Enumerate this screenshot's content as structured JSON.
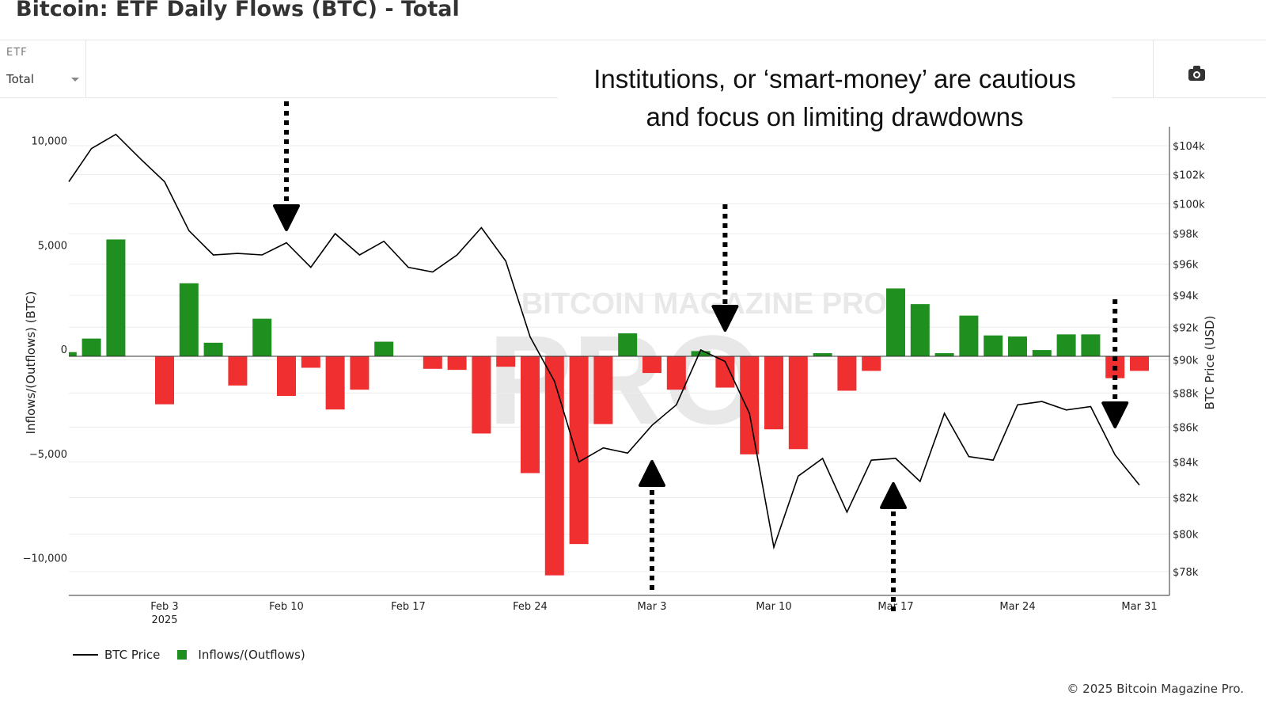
{
  "header": {
    "title": "Bitcoin: ETF Daily Flows (BTC) - Total"
  },
  "toolbar": {
    "etf_label": "ETF",
    "etf_value": "Total",
    "camera_icon": "camera-icon"
  },
  "annotation": {
    "line1": "Institutions, or ‘smart-money’ are cautious",
    "line2": "and focus on limiting drawdowns"
  },
  "watermark": "BITCOIN MAGAZINE PRO",
  "legend": {
    "price": "BTC Price",
    "flows": "Inflows/(Outflows)"
  },
  "copyright": "© 2025 Bitcoin Magazine Pro.",
  "colors": {
    "inflow": "#1f8f1f",
    "outflow": "#f03030",
    "price": "#000000"
  },
  "chart_data": {
    "type": "bar+line",
    "title": "Bitcoin: ETF Daily Flows (BTC) - Total",
    "ylabel": "Inflows/(Outflows) (BTC)",
    "y2label": "BTC Price (USD)",
    "ylim": [
      -11400,
      10500
    ],
    "y_ticks": [
      10000,
      5000,
      0,
      -5000,
      -10000
    ],
    "y_tick_labels": [
      "10,000",
      "5,000",
      "0",
      "−5,000",
      "−10,000"
    ],
    "y2_scale": "log",
    "y2_ticks": [
      104000,
      102000,
      100000,
      98000,
      96000,
      94000,
      92000,
      90000,
      88000,
      86000,
      84000,
      82000,
      80000,
      78000
    ],
    "y2_tick_labels": [
      "$104k",
      "$102k",
      "$100k",
      "$98k",
      "$96k",
      "$94k",
      "$92k",
      "$90k",
      "$88k",
      "$86k",
      "$84k",
      "$82k",
      "$80k",
      "$78k"
    ],
    "x_tick_labels": [
      {
        "date": "Feb 3",
        "sub": "2025"
      },
      {
        "date": "Feb 10"
      },
      {
        "date": "Feb 17"
      },
      {
        "date": "Feb 24"
      },
      {
        "date": "Mar 3"
      },
      {
        "date": "Mar 10"
      },
      {
        "date": "Mar 17"
      },
      {
        "date": "Mar 24"
      },
      {
        "date": "Mar 31"
      }
    ],
    "categories": [
      "Jan 28",
      "Jan 29",
      "Jan 30",
      "Jan 31",
      "Feb 3",
      "Feb 4",
      "Feb 5",
      "Feb 6",
      "Feb 7",
      "Feb 10",
      "Feb 11",
      "Feb 12",
      "Feb 13",
      "Feb 14",
      "Feb 17",
      "Feb 18",
      "Feb 19",
      "Feb 20",
      "Feb 21",
      "Feb 24",
      "Feb 25",
      "Feb 26",
      "Feb 27",
      "Feb 28",
      "Mar 3",
      "Mar 4",
      "Mar 5",
      "Mar 6",
      "Mar 7",
      "Mar 10",
      "Mar 11",
      "Mar 12",
      "Mar 13",
      "Mar 14",
      "Mar 17",
      "Mar 18",
      "Mar 19",
      "Mar 20",
      "Mar 21",
      "Mar 24",
      "Mar 25",
      "Mar 26",
      "Mar 27",
      "Mar 28",
      "Mar 31"
    ],
    "series": [
      {
        "name": "Inflows/(Outflows)",
        "type": "bar",
        "values": [
          200,
          850,
          5600,
          0,
          -2300,
          3500,
          650,
          -1400,
          1800,
          -1900,
          -550,
          -2550,
          -1600,
          700,
          0,
          -600,
          -650,
          -3700,
          -500,
          -5600,
          -10500,
          -9000,
          -3250,
          1100,
          -800,
          -1600,
          250,
          -1500,
          -4700,
          -3500,
          -4450,
          150,
          -1650,
          -700,
          3250,
          2500,
          150,
          1950,
          1000,
          950,
          300,
          1050,
          1050,
          -1050,
          -700
        ]
      },
      {
        "name": "BTC Price",
        "type": "line",
        "values": [
          101500,
          103800,
          104800,
          103100,
          101500,
          98200,
          96600,
          96700,
          96600,
          97400,
          95800,
          98000,
          96600,
          97500,
          95800,
          95500,
          96600,
          98400,
          96200,
          91400,
          88700,
          84000,
          84800,
          84500,
          86100,
          87300,
          90600,
          89900,
          86800,
          79300,
          83200,
          84200,
          81200,
          84100,
          84200,
          82900,
          86800,
          84300,
          84100,
          87300,
          87500,
          87000,
          87200,
          84400,
          82700
        ]
      }
    ],
    "annotations": [
      {
        "date": "Feb 10",
        "direction": "down"
      },
      {
        "date": "Mar 3",
        "direction": "up"
      },
      {
        "date": "Mar 6",
        "direction": "down"
      },
      {
        "date": "Mar 17",
        "direction": "up"
      },
      {
        "date": "Mar 28",
        "direction": "down"
      }
    ],
    "legend_position": "bottom-left",
    "grid": true
  }
}
